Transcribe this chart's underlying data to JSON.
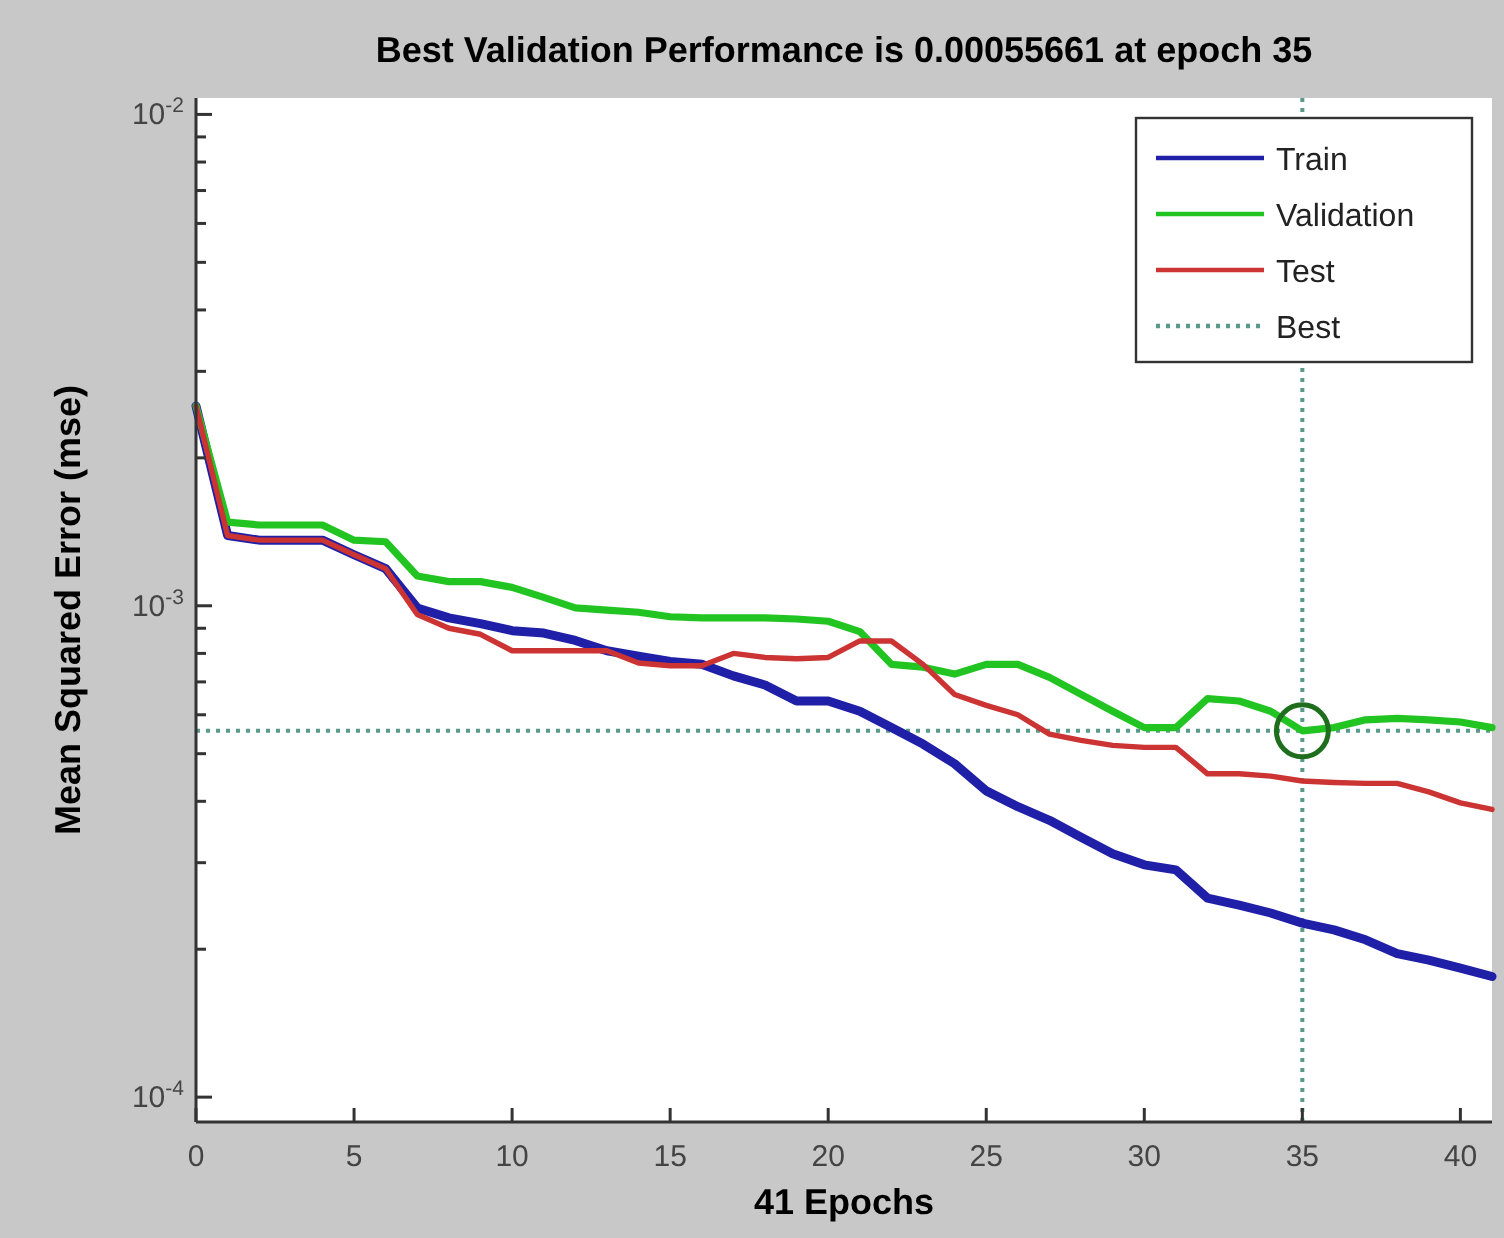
{
  "chart_data": {
    "type": "line",
    "title": "Best Validation Performance is 0.00055661 at epoch 35",
    "xlabel": "41 Epochs",
    "ylabel": "Mean Squared Error  (mse)",
    "x": [
      0,
      1,
      2,
      3,
      4,
      5,
      6,
      7,
      8,
      9,
      10,
      11,
      12,
      13,
      14,
      15,
      16,
      17,
      18,
      19,
      20,
      21,
      22,
      23,
      24,
      25,
      26,
      27,
      28,
      29,
      30,
      31,
      32,
      33,
      34,
      35,
      36,
      37,
      38,
      39,
      40,
      41
    ],
    "series": [
      {
        "name": "Train",
        "color": "#1f1fa8",
        "values": [
          0.00255,
          0.00139,
          0.00136,
          0.00136,
          0.00136,
          0.00127,
          0.00119,
          0.00099,
          0.000945,
          0.00092,
          0.00089,
          0.00088,
          0.00085,
          0.00081,
          0.00079,
          0.00077,
          0.00076,
          0.00072,
          0.00069,
          0.00064,
          0.00064,
          0.00061,
          0.000565,
          0.000523,
          0.000477,
          0.00042,
          0.00039,
          0.000366,
          0.000338,
          0.000313,
          0.000297,
          0.00029,
          0.000254,
          0.000246,
          0.000237,
          0.000226,
          0.000219,
          0.000209,
          0.000196,
          0.00019,
          0.000183,
          0.000176
        ]
      },
      {
        "name": "Validation",
        "color": "#22c422",
        "values": [
          0.00255,
          0.00148,
          0.00146,
          0.00146,
          0.00146,
          0.00136,
          0.00135,
          0.00115,
          0.00112,
          0.00112,
          0.00109,
          0.00104,
          0.00099,
          0.00098,
          0.00097,
          0.00095,
          0.000945,
          0.000945,
          0.000945,
          0.00094,
          0.00093,
          0.000886,
          0.00076,
          0.00075,
          0.000726,
          0.00076,
          0.00076,
          0.000715,
          0.00066,
          0.00061,
          0.000565,
          0.000565,
          0.000647,
          0.00064,
          0.00061,
          0.00055661,
          0.000565,
          0.000586,
          0.00059,
          0.000586,
          0.00058,
          0.000565
        ]
      },
      {
        "name": "Test",
        "color": "#cc3333",
        "values": [
          0.00255,
          0.00139,
          0.00136,
          0.00136,
          0.00136,
          0.00127,
          0.00119,
          0.00096,
          0.0009,
          0.000875,
          0.00081,
          0.00081,
          0.00081,
          0.00081,
          0.000765,
          0.000755,
          0.000755,
          0.0008,
          0.000785,
          0.00078,
          0.000785,
          0.000848,
          0.000848,
          0.00076,
          0.00066,
          0.000627,
          0.0006,
          0.000548,
          0.000532,
          0.00052,
          0.000515,
          0.000515,
          0.000455,
          0.000455,
          0.00045,
          0.00044,
          0.000437,
          0.000435,
          0.000435,
          0.000418,
          0.000397,
          0.000385
        ]
      },
      {
        "type": "scatter",
        "color": "#1e6e1e",
        "marker": "circle",
        "x": [
          35
        ],
        "values": [
          0.00055661
        ]
      }
    ],
    "ref_lines": [
      {
        "axis": "x",
        "value": 35,
        "label": "Best",
        "color": "#5a9a8a",
        "line_style": "dotted"
      },
      {
        "axis": "y",
        "value": 0.00055661,
        "color": "#5a9a8a",
        "line_style": "dotted"
      }
    ],
    "log": "y",
    "legend": "top right",
    "line_style": "solid",
    "marker": "none",
    "xlim": [
      0,
      41
    ],
    "xticks": [
      0,
      5,
      10,
      15,
      20,
      25,
      30,
      35,
      40
    ],
    "ylim": [
      8.9e-05,
      0.0108
    ],
    "yticks": [
      {
        "value": 0.0001,
        "label": "10$^{-4}$"
      },
      {
        "value": 0.0002,
        "label": null
      },
      {
        "value": 0.0003,
        "label": null
      },
      {
        "value": 0.0004,
        "label": null
      },
      {
        "value": 0.0005,
        "label": null
      },
      {
        "value": 0.0006,
        "label": null
      },
      {
        "value": 0.0007,
        "label": null
      },
      {
        "value": 0.0008,
        "label": null
      },
      {
        "value": 0.0009,
        "label": null
      },
      {
        "value": 0.001,
        "label": "10$^{-3}$"
      },
      {
        "value": 0.002,
        "label": null
      },
      {
        "value": 0.003,
        "label": null
      },
      {
        "value": 0.004,
        "label": null
      },
      {
        "value": 0.005,
        "label": null
      },
      {
        "value": 0.006,
        "label": null
      },
      {
        "value": 0.007,
        "label": null
      },
      {
        "value": 0.008,
        "label": null
      },
      {
        "value": 0.009,
        "label": null
      },
      {
        "value": 0.01,
        "label": "10$^{-2}$"
      }
    ]
  }
}
